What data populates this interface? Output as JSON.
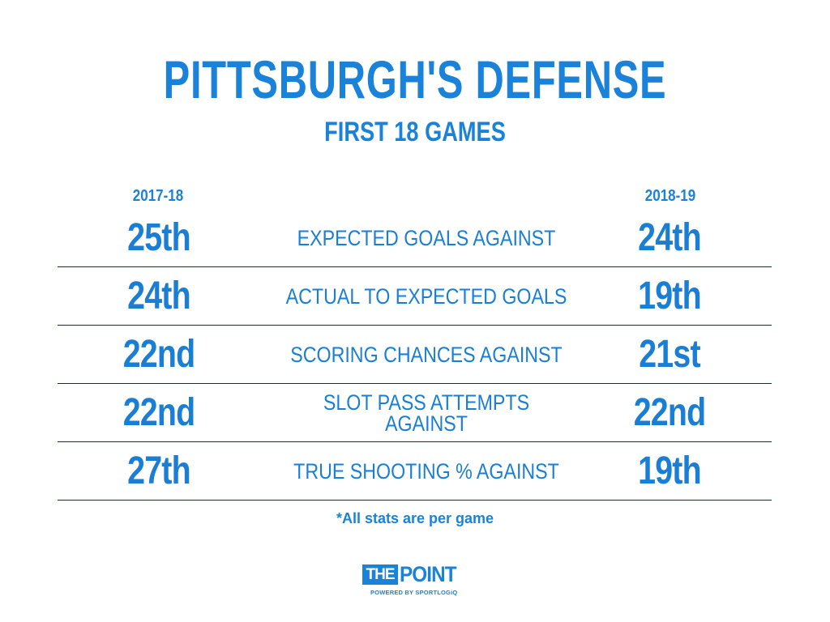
{
  "title": "PITTSBURGH'S DEFENSE",
  "subtitle": "FIRST 18 GAMES",
  "columns": {
    "left": "2017-18",
    "right": "2018-19"
  },
  "rows": [
    {
      "left": "25th",
      "metric": [
        "EXPECTED GOALS AGAINST"
      ],
      "right": "24th"
    },
    {
      "left": "24th",
      "metric": [
        "ACTUAL TO EXPECTED GOALS"
      ],
      "right": "19th"
    },
    {
      "left": "22nd",
      "metric": [
        "SCORING CHANCES AGAINST"
      ],
      "right": "21st"
    },
    {
      "left": "22nd",
      "metric": [
        "SLOT PASS ATTEMPTS",
        "AGAINST"
      ],
      "right": "22nd"
    },
    {
      "left": "27th",
      "metric": [
        "TRUE SHOOTING % AGAINST"
      ],
      "right": "19th"
    }
  ],
  "footnote": "*All stats are per game",
  "logo": {
    "the": "THE",
    "point": "POINT",
    "powered": "POWERED BY SPORTLOGiQ"
  },
  "colors": {
    "accent": "#1a82d9",
    "divider": "#0f2a4a",
    "background": "#ffffff"
  }
}
